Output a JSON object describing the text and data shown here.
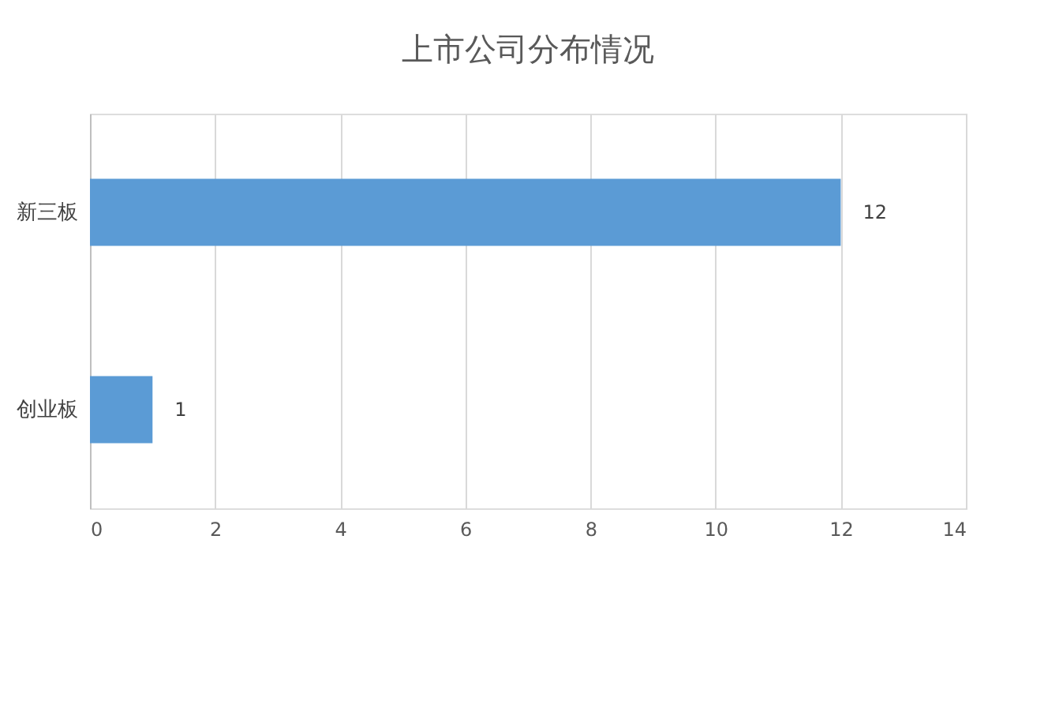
{
  "chart_data": {
    "type": "bar",
    "orientation": "horizontal",
    "title": "上市公司分布情况",
    "categories": [
      "新三板",
      "创业板"
    ],
    "series": [
      {
        "color": "#5b9bd5",
        "values": [
          12,
          1
        ]
      }
    ],
    "xlim": [
      0,
      14
    ],
    "xticks": [
      0,
      2,
      4,
      6,
      8,
      10,
      12,
      14
    ],
    "grid": "x",
    "data_labels": true
  }
}
